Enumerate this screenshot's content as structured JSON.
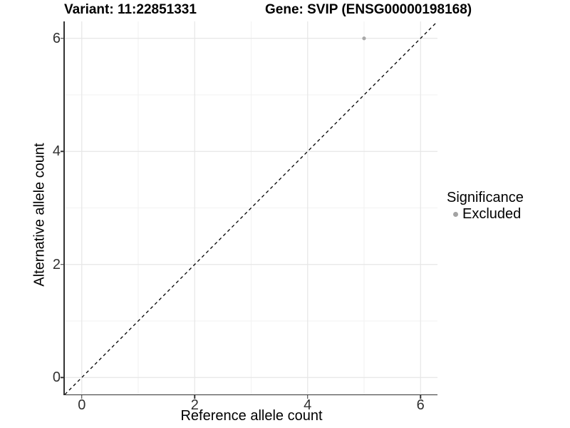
{
  "chart_data": {
    "type": "scatter",
    "titles": {
      "left": "Variant: 11:22851331",
      "right": "Gene: SVIP (ENSG00000198168)"
    },
    "xlabel": "Reference allele count",
    "ylabel": "Alternative allele count",
    "xlim": [
      -0.3,
      6.3
    ],
    "ylim": [
      -0.3,
      6.3
    ],
    "x_ticks": [
      0,
      2,
      4,
      6
    ],
    "y_ticks": [
      0,
      2,
      4,
      6
    ],
    "minor_gridlines_at": [
      1,
      3,
      5
    ],
    "grid": "on",
    "points": [
      {
        "x": 5,
        "y": 6,
        "series": "Excluded"
      }
    ],
    "reference_line": {
      "shape": "identity y=x",
      "style": "dashed",
      "from": [
        -0.3,
        -0.3
      ],
      "to": [
        6.3,
        6.3
      ]
    },
    "legend": {
      "title": "Significance",
      "position": "right",
      "entries": [
        {
          "label": "Excluded",
          "marker": "circle",
          "color": "#a3a3a3"
        }
      ]
    },
    "colors": {
      "point": "#a9a9a9",
      "grid_major": "#e6e6e6",
      "grid_minor": "#f2f2f2",
      "axis_line": "#333333",
      "reference_line": "#000000"
    }
  }
}
